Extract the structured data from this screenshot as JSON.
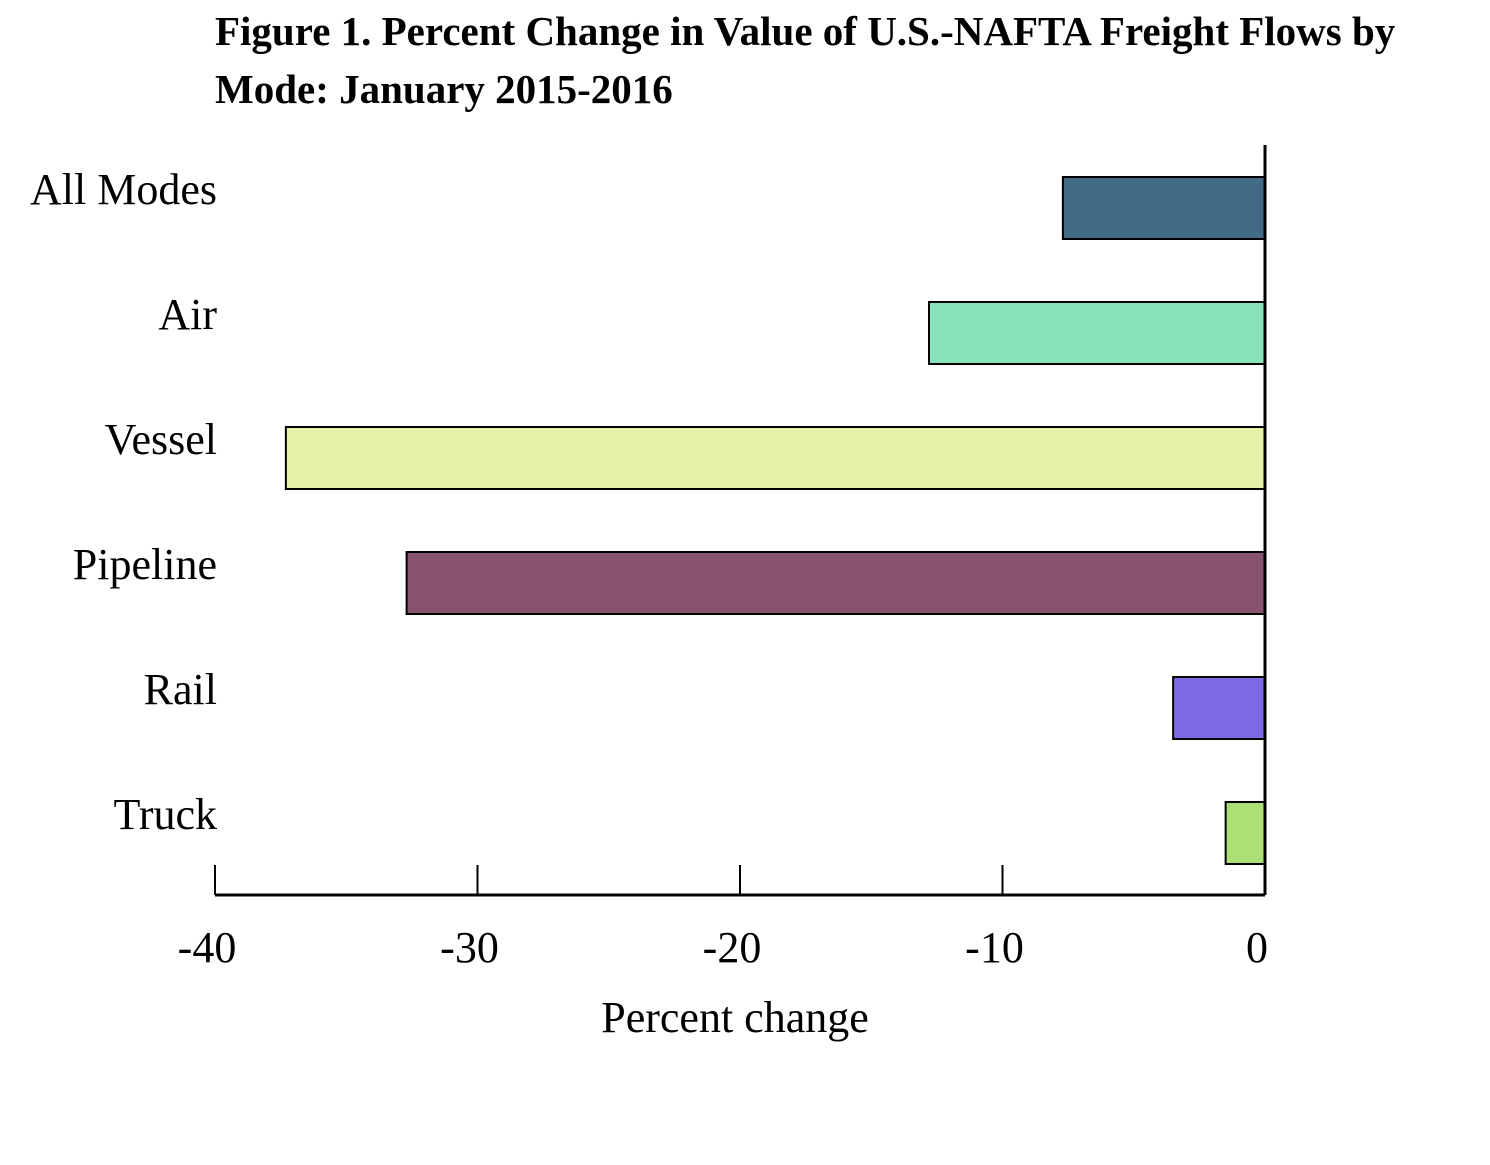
{
  "chart_data": {
    "type": "bar",
    "orientation": "horizontal",
    "title": "Figure 1.  Percent Change in Value of U.S.-NAFTA Freight Flows by Mode: January 2015-2016",
    "categories": [
      "All Modes",
      "Air",
      "Vessel",
      "Pipeline",
      "Rail",
      "Truck"
    ],
    "values": [
      -7.7,
      -12.8,
      -37.3,
      -32.7,
      -3.5,
      -1.5
    ],
    "colors": [
      "#426a84",
      "#86e3bc",
      "#e4f1a7",
      "#87536e",
      "#7c6ae5",
      "#addf77"
    ],
    "x_label": "Percent change",
    "xlim": [
      -40,
      0
    ],
    "xticks": [
      -40,
      -30,
      -20,
      -10,
      0
    ],
    "grid": false
  }
}
